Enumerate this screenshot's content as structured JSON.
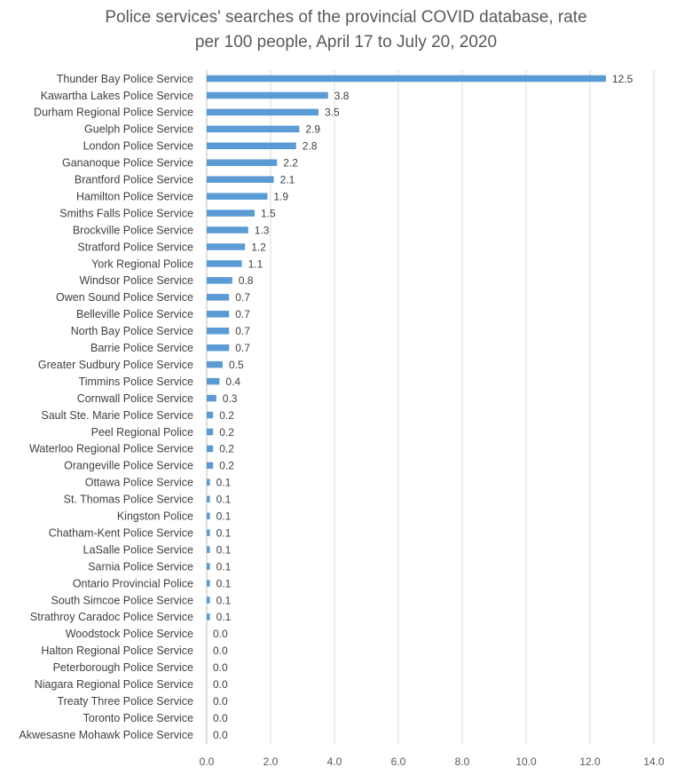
{
  "chart_data": {
    "type": "bar",
    "orientation": "horizontal",
    "title_lines": [
      "Police services' searches of the provincial COVID database, rate",
      "per 100 people, April 17 to July 20, 2020"
    ],
    "categories": [
      "Thunder Bay Police Service",
      "Kawartha Lakes Police Service",
      "Durham Regional Police Service",
      "Guelph Police Service",
      "London Police Service",
      "Gananoque Police Service",
      "Brantford Police Service",
      "Hamilton Police Service",
      "Smiths Falls Police Service",
      "Brockville Police Service",
      "Stratford Police Service",
      "York Regional Police",
      "Windsor Police Service",
      "Owen Sound Police Service",
      "Belleville Police Service",
      "North Bay Police Service",
      "Barrie Police Service",
      "Greater Sudbury Police Service",
      "Timmins Police Service",
      "Cornwall Police Service",
      "Sault Ste. Marie Police Service",
      "Peel Regional Police",
      "Waterloo Regional Police Service",
      "Orangeville Police Service",
      "Ottawa Police Service",
      "St. Thomas Police Service",
      "Kingston Police",
      "Chatham-Kent Police Service",
      "LaSalle Police Service",
      "Sarnia Police Service",
      "Ontario Provincial Police",
      "South Simcoe Police Service",
      "Strathroy Caradoc Police Service",
      "Woodstock Police Service",
      "Halton Regional Police Service",
      "Peterborough Police Service",
      "Niagara Regional Police Service",
      "Treaty Three Police Service",
      "Toronto Police Service",
      "Akwesasne Mohawk Police Service"
    ],
    "values": [
      12.5,
      3.8,
      3.5,
      2.9,
      2.8,
      2.2,
      2.1,
      1.9,
      1.5,
      1.3,
      1.2,
      1.1,
      0.8,
      0.7,
      0.7,
      0.7,
      0.7,
      0.5,
      0.4,
      0.3,
      0.2,
      0.2,
      0.2,
      0.2,
      0.1,
      0.1,
      0.1,
      0.1,
      0.1,
      0.1,
      0.1,
      0.1,
      0.1,
      0.0,
      0.0,
      0.0,
      0.0,
      0.0,
      0.0,
      0.0
    ],
    "value_labels": [
      "12.5",
      "3.8",
      "3.5",
      "2.9",
      "2.8",
      "2.2",
      "2.1",
      "1.9",
      "1.5",
      "1.3",
      "1.2",
      "1.1",
      "0.8",
      "0.7",
      "0.7",
      "0.7",
      "0.7",
      "0.5",
      "0.4",
      "0.3",
      "0.2",
      "0.2",
      "0.2",
      "0.2",
      "0.1",
      "0.1",
      "0.1",
      "0.1",
      "0.1",
      "0.1",
      "0.1",
      "0.1",
      "0.1",
      "0.0",
      "0.0",
      "0.0",
      "0.0",
      "0.0",
      "0.0",
      "0.0"
    ],
    "xlim": [
      0,
      14
    ],
    "x_ticks": [
      0,
      2,
      4,
      6,
      8,
      10,
      12,
      14
    ],
    "x_tick_labels": [
      "0.0",
      "2.0",
      "4.0",
      "6.0",
      "8.0",
      "10.0",
      "12.0",
      "14.0"
    ],
    "grid": "vertical",
    "legend": "none",
    "bar_color": "#5b9bd5",
    "grid_color": "#d9d9d9"
  }
}
